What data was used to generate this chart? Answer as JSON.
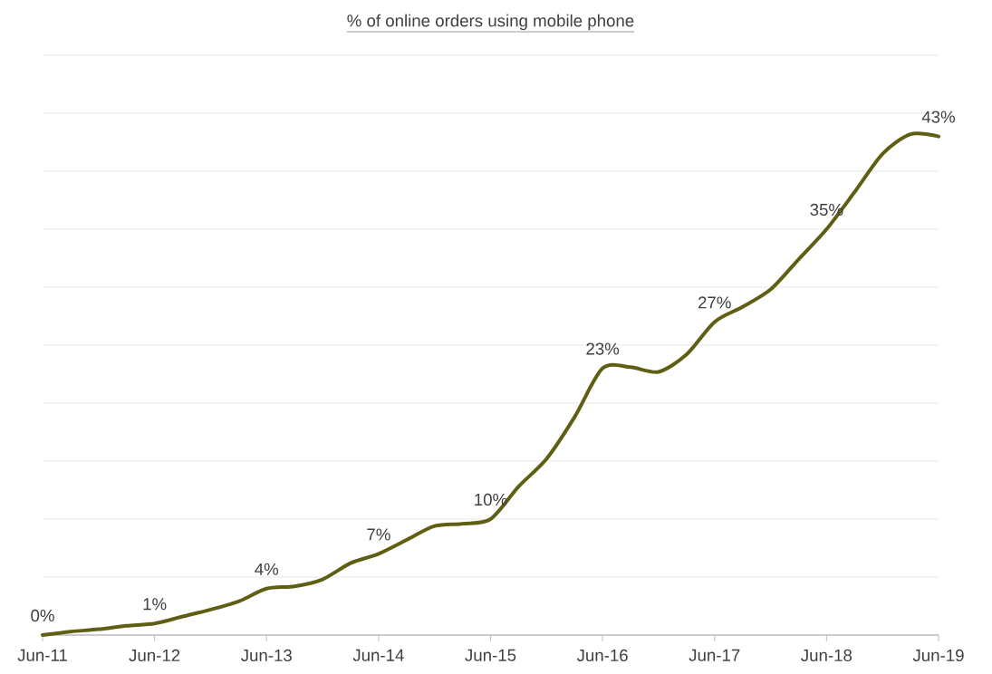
{
  "chart_data": {
    "type": "line",
    "title": "% of online orders using mobile phone",
    "x": [
      "2011-06",
      "2011-09",
      "2011-12",
      "2012-03",
      "2012-06",
      "2012-09",
      "2012-12",
      "2013-03",
      "2013-06",
      "2013-09",
      "2013-12",
      "2014-03",
      "2014-06",
      "2014-09",
      "2014-12",
      "2015-03",
      "2015-06",
      "2015-09",
      "2015-12",
      "2016-03",
      "2016-06",
      "2016-09",
      "2016-12",
      "2017-03",
      "2017-06",
      "2017-09",
      "2017-12",
      "2018-03",
      "2018-06",
      "2018-09",
      "2018-12",
      "2019-03",
      "2019-06"
    ],
    "series": [
      {
        "color": "#5f5f14",
        "values": [
          0,
          0.3,
          0.5,
          0.8,
          1,
          1.6,
          2.2,
          2.9,
          4,
          4.2,
          4.8,
          6.2,
          7,
          8.2,
          9.4,
          9.6,
          10,
          12.8,
          15.2,
          18.8,
          23,
          23.1,
          22.7,
          24.2,
          27,
          28.3,
          29.8,
          32.4,
          35,
          38.2,
          41.5,
          43.2,
          43
        ],
        "value_labels": [
          "0%",
          null,
          null,
          null,
          "1%",
          null,
          null,
          null,
          "4%",
          null,
          null,
          null,
          "7%",
          null,
          null,
          null,
          "10%",
          null,
          null,
          null,
          "23%",
          null,
          null,
          null,
          "27%",
          null,
          null,
          null,
          "35%",
          null,
          null,
          null,
          "43%"
        ]
      }
    ],
    "xlim": [
      "2011-06",
      "2019-06"
    ],
    "xticks": [
      {
        "value": "2011-06",
        "label": "Jun-11"
      },
      {
        "value": "2012-06",
        "label": "Jun-12"
      },
      {
        "value": "2013-06",
        "label": "Jun-13"
      },
      {
        "value": "2014-06",
        "label": "Jun-14"
      },
      {
        "value": "2015-06",
        "label": "Jun-15"
      },
      {
        "value": "2016-06",
        "label": "Jun-16"
      },
      {
        "value": "2017-06",
        "label": "Jun-17"
      },
      {
        "value": "2018-06",
        "label": "Jun-18"
      },
      {
        "value": "2019-06",
        "label": "Jun-19"
      }
    ],
    "ylim": [
      0,
      50
    ],
    "yticks": [
      {
        "value": 0,
        "label": null
      },
      {
        "value": 5,
        "label": null
      },
      {
        "value": 10,
        "label": null
      },
      {
        "value": 15,
        "label": null
      },
      {
        "value": 20,
        "label": null
      },
      {
        "value": 25,
        "label": null
      },
      {
        "value": 30,
        "label": null
      },
      {
        "value": 35,
        "label": null
      },
      {
        "value": 40,
        "label": null
      },
      {
        "value": 45,
        "label": null
      },
      {
        "value": 50,
        "label": null
      }
    ],
    "grid": "y",
    "tick_labels": "x",
    "line_style": "solid"
  }
}
